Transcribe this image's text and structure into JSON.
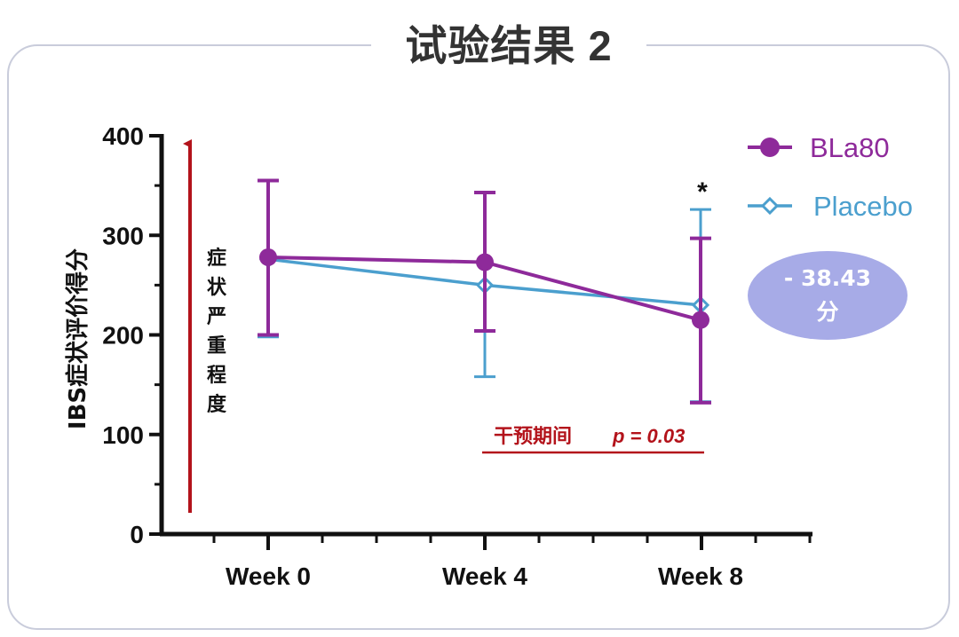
{
  "page_title": "试验结果 2",
  "chart_data": {
    "type": "line",
    "categories": [
      "Week 0",
      "Week 4",
      "Week 8"
    ],
    "ylabel": "IBS症状评价得分",
    "ylim": [
      0,
      400
    ],
    "yticks": [
      0,
      100,
      200,
      300,
      400
    ],
    "legend_position": "top-right",
    "series": [
      {
        "name": "BLa80",
        "color": "#8e2a9a",
        "marker": "filled-circle",
        "values": [
          278,
          273,
          215
        ],
        "error_low": [
          200,
          204,
          132
        ],
        "error_high": [
          355,
          343,
          297
        ]
      },
      {
        "name": "Placebo",
        "color": "#4b9fce",
        "marker": "open-diamond",
        "values": [
          276,
          250,
          230
        ],
        "error_low": [
          198,
          158,
          133
        ],
        "error_high": [
          355,
          343,
          326
        ]
      }
    ],
    "annotations": {
      "severity_label": "症状严重程度",
      "significance_marker": "*",
      "intervention_label": "干预期间",
      "p_value": "p = 0.03",
      "difference_line1": "- 38.43",
      "difference_line2": "分"
    }
  }
}
